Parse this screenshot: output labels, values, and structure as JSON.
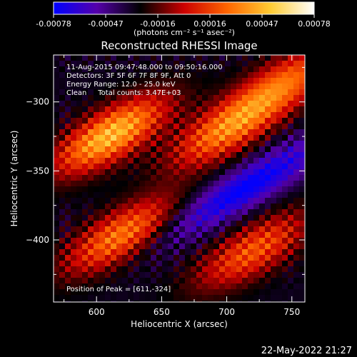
{
  "colorbar": {
    "ticks": [
      "-0.00078",
      "-0.00047",
      "-0.00016",
      "0.00016",
      "0.00047",
      "0.00078"
    ],
    "unit_label": "(photons cm⁻² s⁻¹ asec⁻²)",
    "colors": [
      "#0000ff",
      "#5500aa",
      "#000000",
      "#cc0000",
      "#ff6600",
      "#ffcc33",
      "#ffffff"
    ]
  },
  "chart_data": {
    "type": "heatmap",
    "title": "Reconstructed RHESSI Image",
    "xlabel": "Heliocentric X (arcsec)",
    "ylabel": "Heliocentric Y (arcsec)",
    "x_ticks": [
      600,
      650,
      700,
      750
    ],
    "y_ticks": [
      -300,
      -350,
      -400
    ],
    "xlim": [
      567,
      760
    ],
    "ylim": [
      -445,
      -266
    ],
    "zlim": [
      -0.00078,
      0.00078
    ],
    "annotations": [
      "11-Aug-2015 09:47:48.000 to 09:50:16.000",
      "Detectors: 3F 5F 6F 7F 8F 9F, Att 0",
      "Energy Range: 12.0 - 25.0 keV",
      "Clean     Total counts: 3.47E+03"
    ],
    "peak_label": "Position of Peak = [611,-324]",
    "peak": [
      611,
      -324
    ],
    "sources": [
      {
        "x": 611,
        "y": -324,
        "value": 0.00078
      },
      {
        "x": 619,
        "y": -397,
        "value": 0.0006
      },
      {
        "x": 700,
        "y": -320,
        "value": 0.00058
      },
      {
        "x": 745,
        "y": -286,
        "value": 0.0005
      },
      {
        "x": 720,
        "y": -408,
        "value": 0.0005
      }
    ],
    "minimum": {
      "x": 715,
      "y": -362,
      "value": -0.00078
    }
  },
  "footer": {
    "date": "22-May-2022 21:27"
  }
}
